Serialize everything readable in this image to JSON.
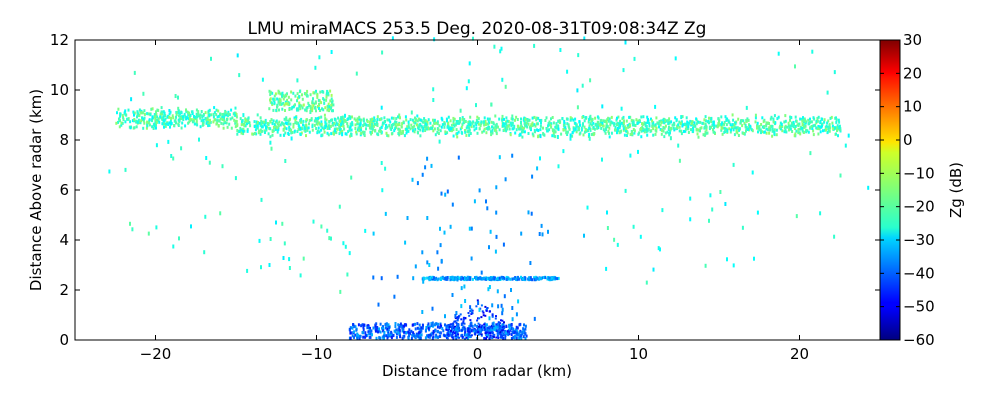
{
  "chart_data": {
    "type": "heatmap",
    "title": "LMU miraMACS 253.5 Deg. 2020-08-31T09:08:34Z  Zg",
    "xlabel": "Distance from radar (km)",
    "ylabel": "Distance Above radar  (km)",
    "xlim": [
      -25,
      25
    ],
    "ylim": [
      0,
      12
    ],
    "xticks": [
      -20,
      -10,
      0,
      10,
      20
    ],
    "xtick_labels": [
      "−20",
      "−10",
      "0",
      "10",
      "20"
    ],
    "yticks": [
      0,
      2,
      4,
      6,
      8,
      10,
      12
    ],
    "ytick_labels": [
      "0",
      "2",
      "4",
      "6",
      "8",
      "10",
      "12"
    ],
    "colorbar": {
      "label": "Zg (dB)",
      "range": [
        -60,
        30
      ],
      "ticks": [
        -60,
        -50,
        -40,
        -30,
        -20,
        -10,
        0,
        10,
        20,
        30
      ],
      "tick_labels": [
        "−60",
        "−50",
        "−40",
        "−30",
        "−20",
        "−10",
        "0",
        "10",
        "20",
        "30"
      ],
      "colormap": "jet"
    },
    "features": [
      {
        "name": "cloud layer",
        "x_range": [
          -22.5,
          22.5
        ],
        "altitude_km": 8.5,
        "thickness_km": 0.6,
        "zg_dB": -20
      },
      {
        "name": "cloud top lobe",
        "x_range": [
          -13,
          -9
        ],
        "altitude_km": 9.5,
        "thickness_km": 0.8,
        "zg_dB": -18
      },
      {
        "name": "near-radar clutter",
        "x_range": [
          -8,
          3
        ],
        "altitude_km": 0.3,
        "thickness_km": 0.6,
        "zg_dB": -40
      },
      {
        "name": "echo band",
        "x_range": [
          -3.5,
          5
        ],
        "altitude_km": 2.4,
        "thickness_km": 0.1,
        "zg_dB": -35
      }
    ]
  }
}
